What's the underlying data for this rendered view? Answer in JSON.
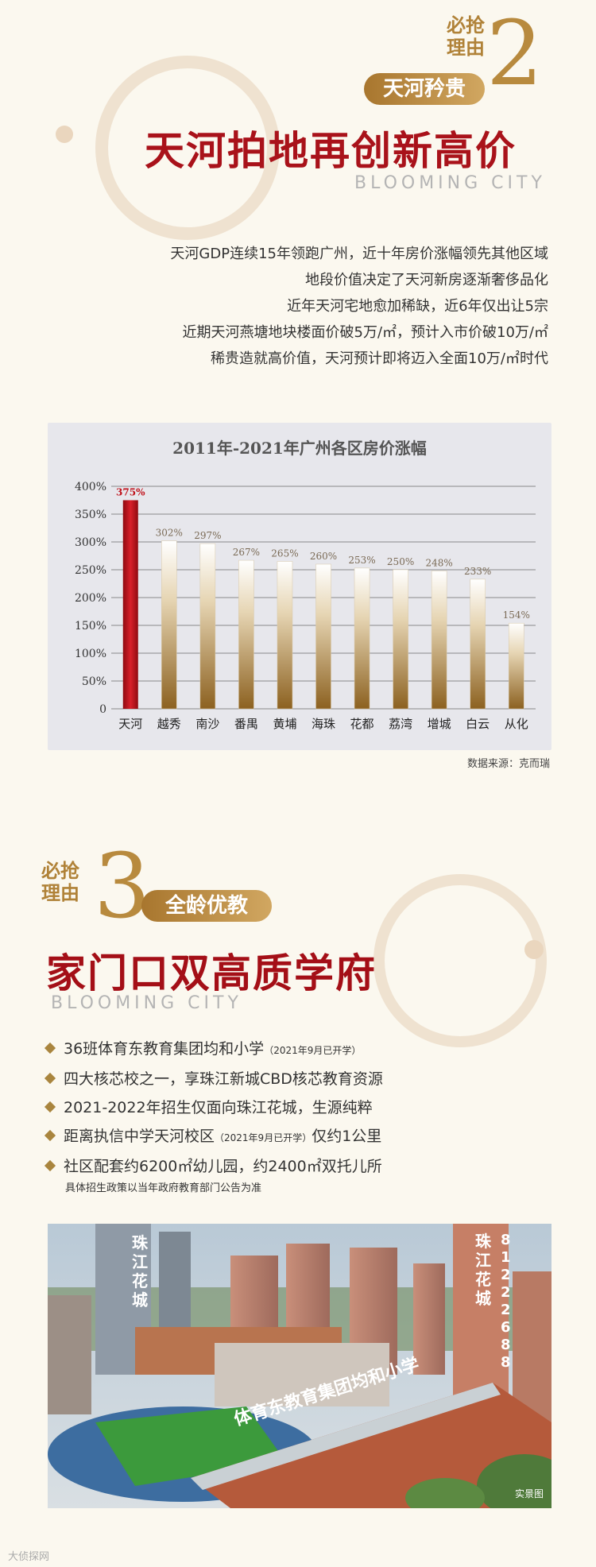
{
  "section2": {
    "must_line1": "必抢",
    "must_line2": "理由",
    "number": "2",
    "tag": "天河矜贵",
    "headline": "天河拍地再创新高价",
    "english": "BLOOMING CITY",
    "paragraphs": [
      "天河GDP连续15年领跑广州，近十年房价涨幅领先其他区域",
      "地段价值决定了天河新房逐渐奢侈品化",
      "近年天河宅地愈加稀缺，近6年仅出让5宗",
      "近期天河燕塘地块楼面价破5万/㎡，预计入市价破10万/㎡",
      "稀贵造就高价值，天河预计即将迈入全面10万/㎡时代"
    ]
  },
  "chart_data": {
    "type": "bar",
    "title": "2011年-2021年广州各区房价涨幅",
    "categories": [
      "天河",
      "越秀",
      "南沙",
      "番禺",
      "黄埔",
      "海珠",
      "花都",
      "荔湾",
      "增城",
      "白云",
      "从化"
    ],
    "values": [
      375,
      302,
      297,
      267,
      265,
      260,
      253,
      250,
      248,
      233,
      154
    ],
    "value_labels": [
      "375%",
      "302%",
      "297%",
      "267%",
      "265%",
      "260%",
      "253%",
      "250%",
      "248%",
      "233%",
      "154%"
    ],
    "y_ticks": [
      "0",
      "50%",
      "100%",
      "150%",
      "200%",
      "250%",
      "300%",
      "350%",
      "400%"
    ],
    "ylim": [
      0,
      420
    ],
    "grid": true,
    "highlight_color": "#c0121b",
    "bar_color": "#a07a38",
    "source": "数据来源：克而瑞"
  },
  "section3": {
    "must_line1": "必抢",
    "must_line2": "理由",
    "number": "3",
    "tag": "全龄优教",
    "headline": "家门口双高质学府",
    "english": "BLOOMING CITY",
    "bullets": [
      {
        "text": "36班体育东教育集团均和小学",
        "small": "（2021年9月已开学）",
        "after": ""
      },
      {
        "text": "四大核芯校之一，享珠江新城CBD核芯教育资源",
        "small": "",
        "after": ""
      },
      {
        "text": "2021-2022年招生仅面向珠江花城，生源纯粹",
        "small": "",
        "after": ""
      },
      {
        "text": "距离执信中学天河校区",
        "small": "（2021年9月已开学）",
        "after": "仅约1公里"
      },
      {
        "text": "社区配套约6200㎡幼儿园，约2400㎡双托儿所",
        "small": "",
        "after": ""
      }
    ],
    "note": "具体招生政策以当年政府教育部门公告为准"
  },
  "photo": {
    "sign_left": "珠江花城",
    "sign_right": "珠江花城",
    "phone": "81222688",
    "school_sign": "体育东教育集团均和小学",
    "caption": "实景图"
  },
  "watermark": "大侦探网"
}
